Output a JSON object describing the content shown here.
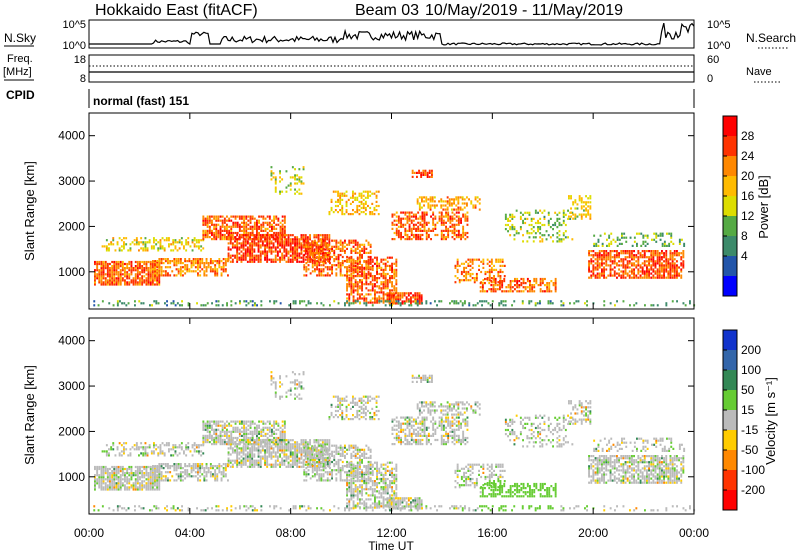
{
  "header": {
    "station": "Hokkaido East (fitACF)",
    "beam": "Beam 03",
    "date_range": "10/May/2019 - 11/May/2019"
  },
  "strips": {
    "nsky_label": "N.Sky",
    "nsky_ticks": [
      "10^5",
      "10^0"
    ],
    "nsearch_label": "N.Search",
    "nsearch_ticks": [
      "10^5",
      "10^0"
    ],
    "freq_label": [
      "Freq.",
      "[MHz]"
    ],
    "freq_ticks": [
      "18",
      "8"
    ],
    "nave_label": "Nave",
    "nave_ticks": [
      "60",
      "0"
    ],
    "cpid_label": "CPID",
    "cpid_value": "normal (fast) 151"
  },
  "panels": {
    "power": {
      "ylabel": "Slant Range [km]",
      "yticks": [
        "4000",
        "3000",
        "2000",
        "1000"
      ],
      "colorbar_label": "Power [dB]",
      "colorbar_ticks": [
        "28",
        "24",
        "20",
        "16",
        "12",
        "8",
        "4"
      ],
      "colorbar_colors": [
        "#ff0000",
        "#ff3300",
        "#ff8800",
        "#ffbb00",
        "#dddd00",
        "#55aa44",
        "#3c8a6a",
        "#2255aa",
        "#0000ff"
      ]
    },
    "velocity": {
      "ylabel": "Slant Range [km]",
      "yticks": [
        "4000",
        "3000",
        "2000",
        "1000"
      ],
      "colorbar_label": "Velocity [m s⁻¹]",
      "colorbar_ticks": [
        "200",
        "100",
        "50",
        "15",
        "-15",
        "-50",
        "-100",
        "-200"
      ],
      "colorbar_colors": [
        "#1133cc",
        "#3366aa",
        "#338855",
        "#66cc33",
        "#bbbbbb",
        "#ffcc00",
        "#ff8800",
        "#ff3300",
        "#ff0000"
      ]
    }
  },
  "xaxis": {
    "label": "Time UT",
    "ticks": [
      "00:00",
      "04:00",
      "08:00",
      "12:00",
      "16:00",
      "20:00",
      "00:00"
    ]
  }
}
